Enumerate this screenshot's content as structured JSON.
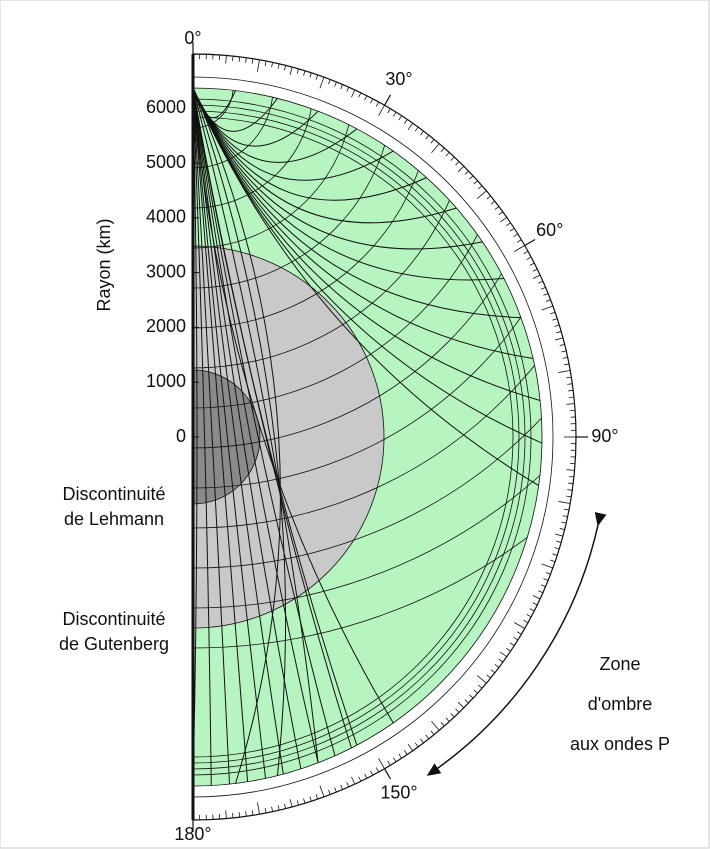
{
  "axis": {
    "label": "Rayon (km)",
    "ticks": [
      6000,
      5000,
      4000,
      3000,
      2000,
      1000,
      0
    ]
  },
  "angles": [
    {
      "value": 0,
      "label": "0°"
    },
    {
      "value": 30,
      "label": "30°"
    },
    {
      "value": 60,
      "label": "60°"
    },
    {
      "value": 90,
      "label": "90°"
    },
    {
      "value": 150,
      "label": "150°"
    },
    {
      "value": 180,
      "label": "180°"
    }
  ],
  "labels": {
    "lehmann": [
      "Discontinuité",
      "de Lehmann"
    ],
    "gutenberg": [
      "Discontinuité",
      "de Gutenberg"
    ],
    "shadow_zone": [
      "Zone",
      "d'ombre",
      "aux ondes P"
    ]
  }
}
